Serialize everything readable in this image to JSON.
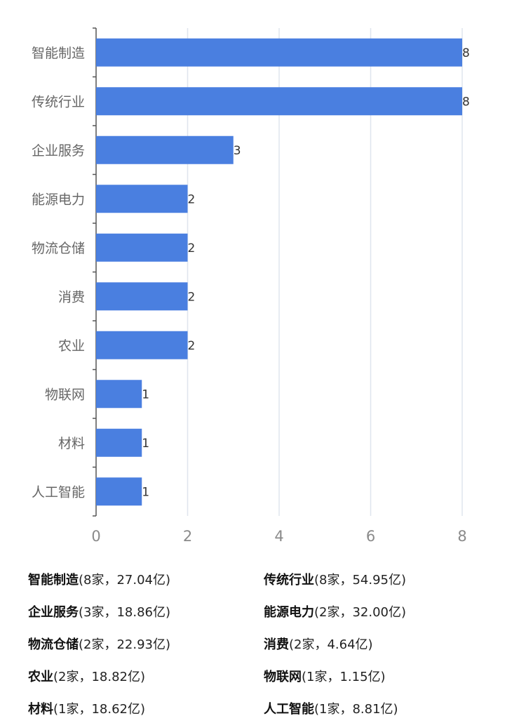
{
  "chart_data": {
    "type": "bar",
    "orientation": "horizontal",
    "categories": [
      "智能制造",
      "传统行业",
      "企业服务",
      "能源电力",
      "物流仓储",
      "消费",
      "农业",
      "物联网",
      "材料",
      "人工智能"
    ],
    "values": [
      8,
      8,
      3,
      2,
      2,
      2,
      2,
      1,
      1,
      1
    ],
    "xticks": [
      "0",
      "2",
      "4",
      "6",
      "8"
    ],
    "xlim": [
      0,
      8
    ],
    "grid": true,
    "bar_color": "#4a7fe0",
    "data_labels": true
  },
  "summary": [
    {
      "name": "智能制造",
      "detail": "(8家，27.04亿)"
    },
    {
      "name": "传统行业",
      "detail": "(8家，54.95亿)"
    },
    {
      "name": "企业服务",
      "detail": "(3家，18.86亿)"
    },
    {
      "name": "能源电力",
      "detail": "(2家，32.00亿)"
    },
    {
      "name": "物流仓储",
      "detail": "(2家，22.93亿)"
    },
    {
      "name": "消费",
      "detail": "(2家，4.64亿)"
    },
    {
      "name": "农业",
      "detail": "(2家，18.82亿)"
    },
    {
      "name": "物联网",
      "detail": "(1家，1.15亿)"
    },
    {
      "name": "材料",
      "detail": "(1家，18.62亿)"
    },
    {
      "name": "人工智能",
      "detail": "(1家，8.81亿)"
    }
  ]
}
